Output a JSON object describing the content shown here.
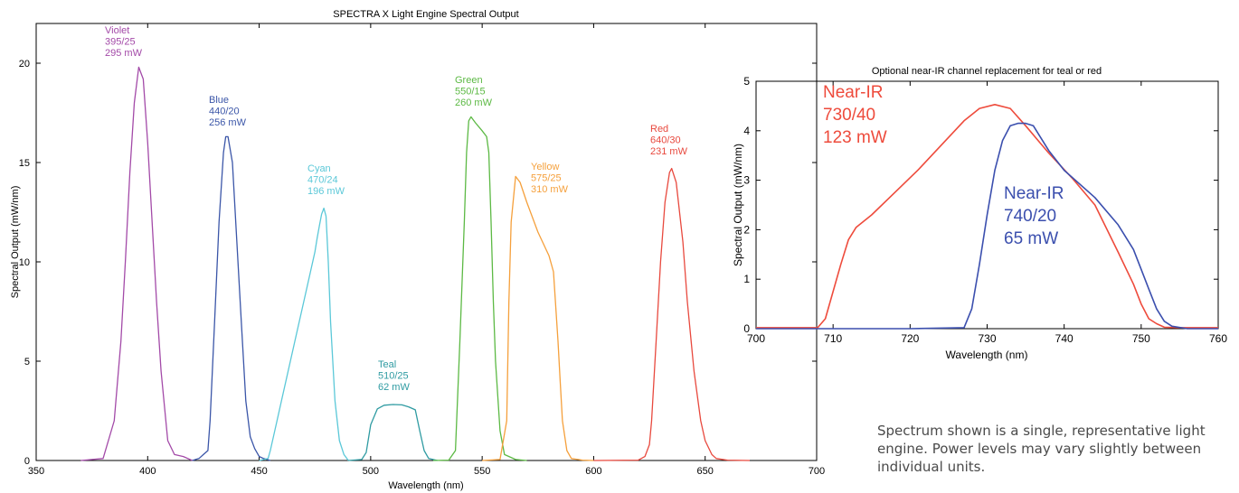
{
  "caption": "Spectrum shown is a single, representative light engine. Power levels may vary slightly between individual units.",
  "chart_data": [
    {
      "type": "line",
      "title": "SPECTRA X Light Engine Spectral Output",
      "xlabel": "Wavelength (nm)",
      "ylabel": "Spectral Output (mW/nm)",
      "xlim": [
        350,
        700
      ],
      "ylim": [
        0,
        22
      ],
      "xticks": [
        350,
        400,
        450,
        500,
        550,
        600,
        650,
        700
      ],
      "yticks": [
        0,
        5,
        10,
        15,
        20
      ],
      "grid": false,
      "series": [
        {
          "name": "Violet",
          "lines": [
            "Violet",
            "395/25",
            "295 mW"
          ],
          "color": "#a34aa8",
          "x": [
            370,
            380,
            385,
            388,
            390,
            392,
            394,
            396,
            398,
            400,
            402,
            404,
            406,
            409,
            412,
            416,
            420
          ],
          "y": [
            0,
            0.1,
            2,
            6,
            10,
            14.5,
            18,
            19.8,
            19.2,
            16,
            12,
            8,
            4.5,
            1,
            0.3,
            0.2,
            0
          ]
        },
        {
          "name": "Blue",
          "lines": [
            "Blue",
            "440/20",
            "256 mW"
          ],
          "color": "#3b56a8",
          "x": [
            420,
            423,
            425,
            427,
            428,
            430,
            432,
            434,
            435,
            436,
            438,
            440,
            442,
            444,
            446,
            448,
            450,
            452,
            455
          ],
          "y": [
            0,
            0.1,
            0.3,
            0.5,
            2,
            7,
            12,
            15.5,
            16.3,
            16.3,
            15,
            11,
            7,
            3,
            1.2,
            0.6,
            0.2,
            0.1,
            0
          ]
        },
        {
          "name": "Cyan",
          "lines": [
            "Cyan",
            "470/24",
            "196 mW"
          ],
          "color": "#5bc8d8",
          "x": [
            450,
            454,
            455,
            458,
            460,
            463,
            466,
            470,
            473,
            475,
            476,
            477,
            478,
            479,
            480,
            481,
            482,
            484,
            486,
            488,
            490
          ],
          "y": [
            0,
            0.1,
            0.5,
            2,
            3,
            4.5,
            6,
            8,
            9.5,
            10.5,
            11.2,
            11.8,
            12.4,
            12.7,
            12.3,
            10,
            7,
            3,
            1,
            0.3,
            0
          ]
        },
        {
          "name": "Teal",
          "lines": [
            "Teal",
            "510/25",
            "62 mW"
          ],
          "color": "#2f9ba2",
          "x": [
            490,
            496,
            498,
            500,
            503,
            506,
            510,
            514,
            517,
            520,
            522,
            524,
            526,
            530
          ],
          "y": [
            0,
            0.05,
            0.4,
            1.8,
            2.6,
            2.78,
            2.82,
            2.8,
            2.7,
            2.55,
            1.5,
            0.5,
            0.1,
            0
          ]
        },
        {
          "name": "Green",
          "lines": [
            "Green",
            "550/15",
            "260 mW"
          ],
          "color": "#5cb944",
          "x": [
            528,
            535,
            538,
            540,
            542,
            543,
            544,
            545,
            547,
            550,
            552,
            553,
            554,
            555,
            556,
            558,
            560,
            565,
            570
          ],
          "y": [
            0,
            0.02,
            0.5,
            6,
            12,
            15.5,
            17.1,
            17.3,
            17,
            16.6,
            16.3,
            15.5,
            12,
            8,
            5,
            1.5,
            0.3,
            0.05,
            0
          ]
        },
        {
          "name": "Yellow",
          "lines": [
            "Yellow",
            "575/25",
            "310 mW"
          ],
          "color": "#f5a03c",
          "x": [
            550,
            558,
            561,
            562,
            563,
            565,
            567,
            570,
            575,
            580,
            582,
            584,
            585,
            586,
            588,
            590,
            595,
            600
          ],
          "y": [
            0,
            0.05,
            2,
            8,
            12,
            14.3,
            14,
            13,
            11.5,
            10.3,
            9.5,
            6,
            4,
            2,
            0.5,
            0.1,
            0.02,
            0
          ]
        },
        {
          "name": "Red",
          "lines": [
            "Red",
            "640/30",
            "231 mW"
          ],
          "color": "#e8493e",
          "x": [
            600,
            620,
            623,
            625,
            626,
            628,
            630,
            632,
            634,
            635,
            637,
            640,
            642,
            645,
            648,
            650,
            653,
            655,
            660,
            670
          ],
          "y": [
            0,
            0.02,
            0.2,
            0.8,
            2,
            6,
            10,
            13,
            14.5,
            14.7,
            14,
            11,
            8,
            4.5,
            2,
            1,
            0.3,
            0.1,
            0.02,
            0
          ]
        }
      ]
    },
    {
      "type": "line",
      "title": "Optional near-IR channel replacement for teal or red",
      "xlabel": "Wavelength (nm)",
      "ylabel": "Spectral Output (mW/nm)",
      "xlim": [
        700,
        760
      ],
      "ylim": [
        0,
        5
      ],
      "xticks": [
        700,
        710,
        720,
        730,
        740,
        750,
        760
      ],
      "yticks": [
        0,
        1,
        2,
        3,
        4,
        5
      ],
      "grid": false,
      "series": [
        {
          "name": "Near-IR 730/40",
          "lines": [
            "Near-IR",
            "730/40",
            "123 mW"
          ],
          "color": "#ee4b3c",
          "x": [
            700,
            708,
            709,
            711,
            712,
            713,
            715,
            718,
            721,
            724,
            727,
            729,
            731,
            733,
            735,
            738,
            741,
            744,
            747,
            749,
            750,
            751,
            752,
            753,
            755,
            760
          ],
          "y": [
            0.02,
            0.02,
            0.2,
            1.3,
            1.8,
            2.05,
            2.3,
            2.75,
            3.2,
            3.7,
            4.2,
            4.45,
            4.53,
            4.45,
            4.1,
            3.55,
            3.05,
            2.5,
            1.55,
            0.9,
            0.5,
            0.2,
            0.1,
            0.03,
            0.02,
            0.02
          ]
        },
        {
          "name": "Near-IR 740/20",
          "lines": [
            "Near-IR",
            "740/20",
            "65 mW"
          ],
          "color": "#3b4fae",
          "x": [
            700,
            710,
            720,
            727,
            728,
            729,
            730,
            731,
            732,
            733,
            734,
            735,
            736,
            738,
            740,
            744,
            747,
            749,
            750,
            751,
            752,
            753,
            754,
            756,
            760
          ],
          "y": [
            0,
            0,
            0,
            0.02,
            0.4,
            1.3,
            2.3,
            3.2,
            3.8,
            4.1,
            4.15,
            4.15,
            4.1,
            3.6,
            3.2,
            2.65,
            2.1,
            1.6,
            1.2,
            0.8,
            0.4,
            0.15,
            0.05,
            0,
            0
          ]
        }
      ]
    }
  ]
}
